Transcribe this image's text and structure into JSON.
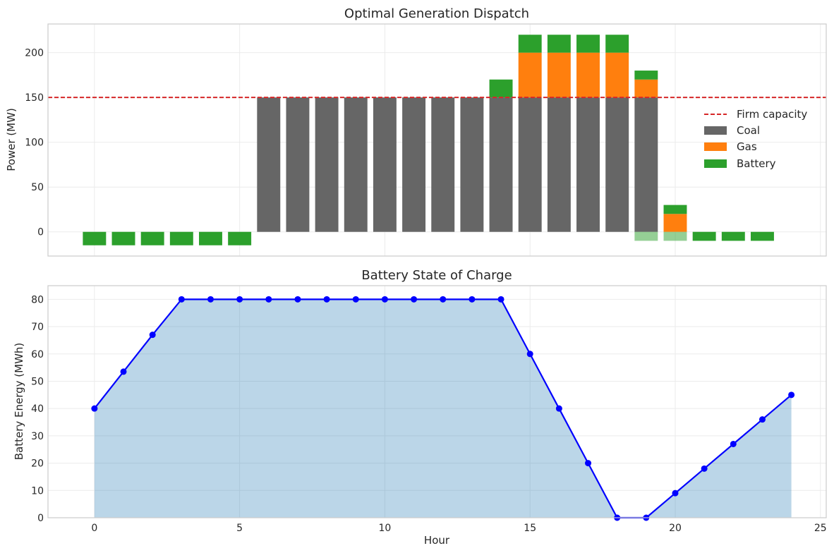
{
  "chart_data": [
    {
      "type": "bar",
      "stacked": true,
      "title": "Optimal Generation Dispatch",
      "xlabel": "",
      "ylabel": "Power (MW)",
      "xlim": [
        -1.6,
        25.2
      ],
      "ylim": [
        -27,
        232
      ],
      "xticks": [
        0,
        5,
        10,
        15,
        20,
        25
      ],
      "yticks": [
        0,
        50,
        100,
        150,
        200
      ],
      "grid": true,
      "legend": {
        "position": "center-right",
        "entries": [
          "Firm capacity",
          "Coal",
          "Gas",
          "Battery"
        ]
      },
      "x": [
        0,
        1,
        2,
        3,
        4,
        5,
        6,
        7,
        8,
        9,
        10,
        11,
        12,
        13,
        14,
        15,
        16,
        17,
        18,
        19,
        20,
        21,
        22,
        23
      ],
      "series": [
        {
          "name": "Coal",
          "color": "#666666",
          "values": [
            0,
            0,
            0,
            0,
            0,
            0,
            150,
            150,
            150,
            150,
            150,
            150,
            150,
            150,
            150,
            150,
            150,
            150,
            150,
            150,
            0,
            0,
            0,
            0
          ]
        },
        {
          "name": "Gas",
          "color": "#ff7f0e",
          "values": [
            0,
            0,
            0,
            0,
            0,
            0,
            0,
            0,
            0,
            0,
            0,
            0,
            0,
            0,
            0,
            50,
            50,
            50,
            50,
            20,
            20,
            0,
            0,
            0
          ]
        },
        {
          "name": "Battery",
          "color": "#2ca02c",
          "values": [
            -15,
            -15,
            -15,
            -15,
            -15,
            -15,
            0,
            0,
            0,
            0,
            0,
            0,
            0,
            0,
            20,
            20,
            20,
            20,
            20,
            10,
            10,
            -10,
            -10,
            -10
          ]
        }
      ],
      "battery_charge_faded": {
        "color": "#2ca02c",
        "opacity": 0.5,
        "x": [
          19,
          20
        ],
        "values": [
          -10,
          -10
        ]
      },
      "firm_capacity": {
        "name": "Firm capacity",
        "value": 150,
        "color": "#d62728",
        "style": "dashed"
      }
    },
    {
      "type": "area",
      "title": "Battery State of Charge",
      "xlabel": "Hour",
      "ylabel": "Battery Energy (MWh)",
      "xlim": [
        -1.6,
        25.2
      ],
      "ylim": [
        0,
        85
      ],
      "xticks": [
        0,
        5,
        10,
        15,
        20,
        25
      ],
      "yticks": [
        0,
        10,
        20,
        30,
        40,
        50,
        60,
        70,
        80
      ],
      "grid": true,
      "line_color": "#0000ff",
      "fill_color": "#1f77b4",
      "fill_opacity": 0.3,
      "x": [
        0,
        1,
        2,
        3,
        4,
        5,
        6,
        7,
        8,
        9,
        10,
        11,
        12,
        13,
        14,
        15,
        16,
        17,
        18,
        19,
        20,
        21,
        22,
        23,
        24
      ],
      "y": [
        40,
        53.5,
        67,
        80,
        80,
        80,
        80,
        80,
        80,
        80,
        80,
        80,
        80,
        80,
        80,
        60,
        40,
        20,
        0,
        0,
        9,
        18,
        27,
        36,
        45
      ]
    }
  ]
}
